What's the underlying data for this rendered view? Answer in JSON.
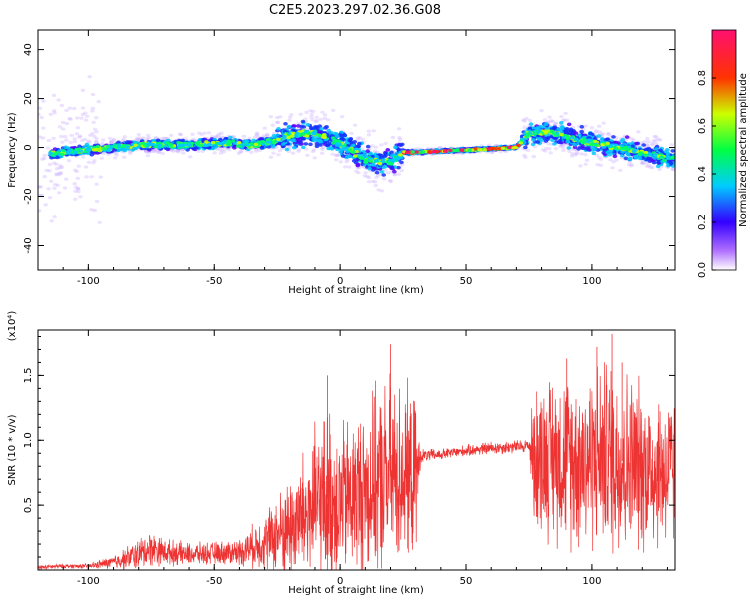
{
  "figure": {
    "title": "C2E5.2023.297.02.36.G08"
  },
  "chart_data": [
    {
      "type": "heatmap",
      "title": "",
      "xlabel": "Height of straight line (km)",
      "ylabel": "Frequency (Hz)",
      "xlim": [
        -120,
        133
      ],
      "ylim": [
        -50,
        48
      ],
      "xticks": [
        -100,
        -50,
        0,
        50,
        100
      ],
      "yticks": [
        -40,
        -20,
        0,
        20,
        40
      ],
      "colorbar": {
        "label": "Normalized spectral amplitude",
        "range": [
          0.0,
          1.0
        ],
        "ticks": [
          0.0,
          0.2,
          0.4,
          0.6,
          0.8
        ],
        "colormap": [
          "#ffffff",
          "#8a2be2",
          "#0000ff",
          "#00ffff",
          "#00ff00",
          "#ffff00",
          "#ff0000",
          "#ff1493"
        ]
      },
      "ridge": {
        "x": [
          -120,
          -100,
          -80,
          -60,
          -45,
          -35,
          -25,
          -20,
          -10,
          0,
          10,
          20,
          25,
          30,
          50,
          70,
          75,
          85,
          95,
          110,
          120,
          133
        ],
        "y": [
          -3,
          -1,
          1,
          1,
          2,
          1,
          3,
          5,
          6,
          2,
          -5,
          -6,
          -2,
          -2,
          -1,
          0,
          6,
          6,
          3,
          0,
          -2,
          -5
        ]
      },
      "grid": false
    },
    {
      "type": "line",
      "title": "",
      "xlabel": "Height of straight line (km)",
      "ylabel": "SNR (10 * v/v)",
      "y_multiplier": "(x10⁴)",
      "xlim": [
        -120,
        133
      ],
      "ylim": [
        0,
        1.85
      ],
      "xticks": [
        -100,
        -50,
        0,
        50,
        100
      ],
      "yticks": [
        0.5,
        1.0,
        1.5
      ],
      "ytick_labels": [
        "0.5",
        "1.0",
        "1.5"
      ],
      "series": [
        {
          "color": "#ee3333",
          "x": [
            -120,
            -110,
            -100,
            -90,
            -80,
            -75,
            -70,
            -60,
            -50,
            -40,
            -30,
            -20,
            -10,
            -5,
            0,
            10,
            20,
            25,
            30,
            32,
            40,
            50,
            60,
            70,
            75,
            77,
            85,
            95,
            105,
            110,
            120,
            133
          ],
          "y": [
            0.02,
            0.03,
            0.03,
            0.06,
            0.12,
            0.17,
            0.14,
            0.12,
            0.13,
            0.14,
            0.22,
            0.33,
            0.48,
            0.55,
            0.52,
            0.62,
            0.72,
            0.75,
            0.7,
            0.88,
            0.89,
            0.92,
            0.94,
            0.95,
            0.96,
            0.87,
            0.88,
            0.85,
            0.9,
            0.85,
            0.8,
            0.75
          ],
          "spread": [
            0.02,
            0.02,
            0.02,
            0.06,
            0.14,
            0.16,
            0.12,
            0.1,
            0.1,
            0.12,
            0.25,
            0.45,
            0.7,
            0.8,
            0.7,
            0.75,
            0.9,
            0.8,
            0.7,
            0.06,
            0.05,
            0.05,
            0.06,
            0.06,
            0.06,
            0.65,
            0.75,
            0.8,
            0.85,
            0.9,
            0.75,
            0.7
          ]
        }
      ],
      "peak_samples": [
        [
          -5,
          1.5
        ],
        [
          20,
          1.74
        ],
        [
          108,
          1.82
        ],
        [
          112,
          1.6
        ],
        [
          90,
          1.63
        ],
        [
          102,
          1.72
        ]
      ],
      "grid": false
    }
  ]
}
